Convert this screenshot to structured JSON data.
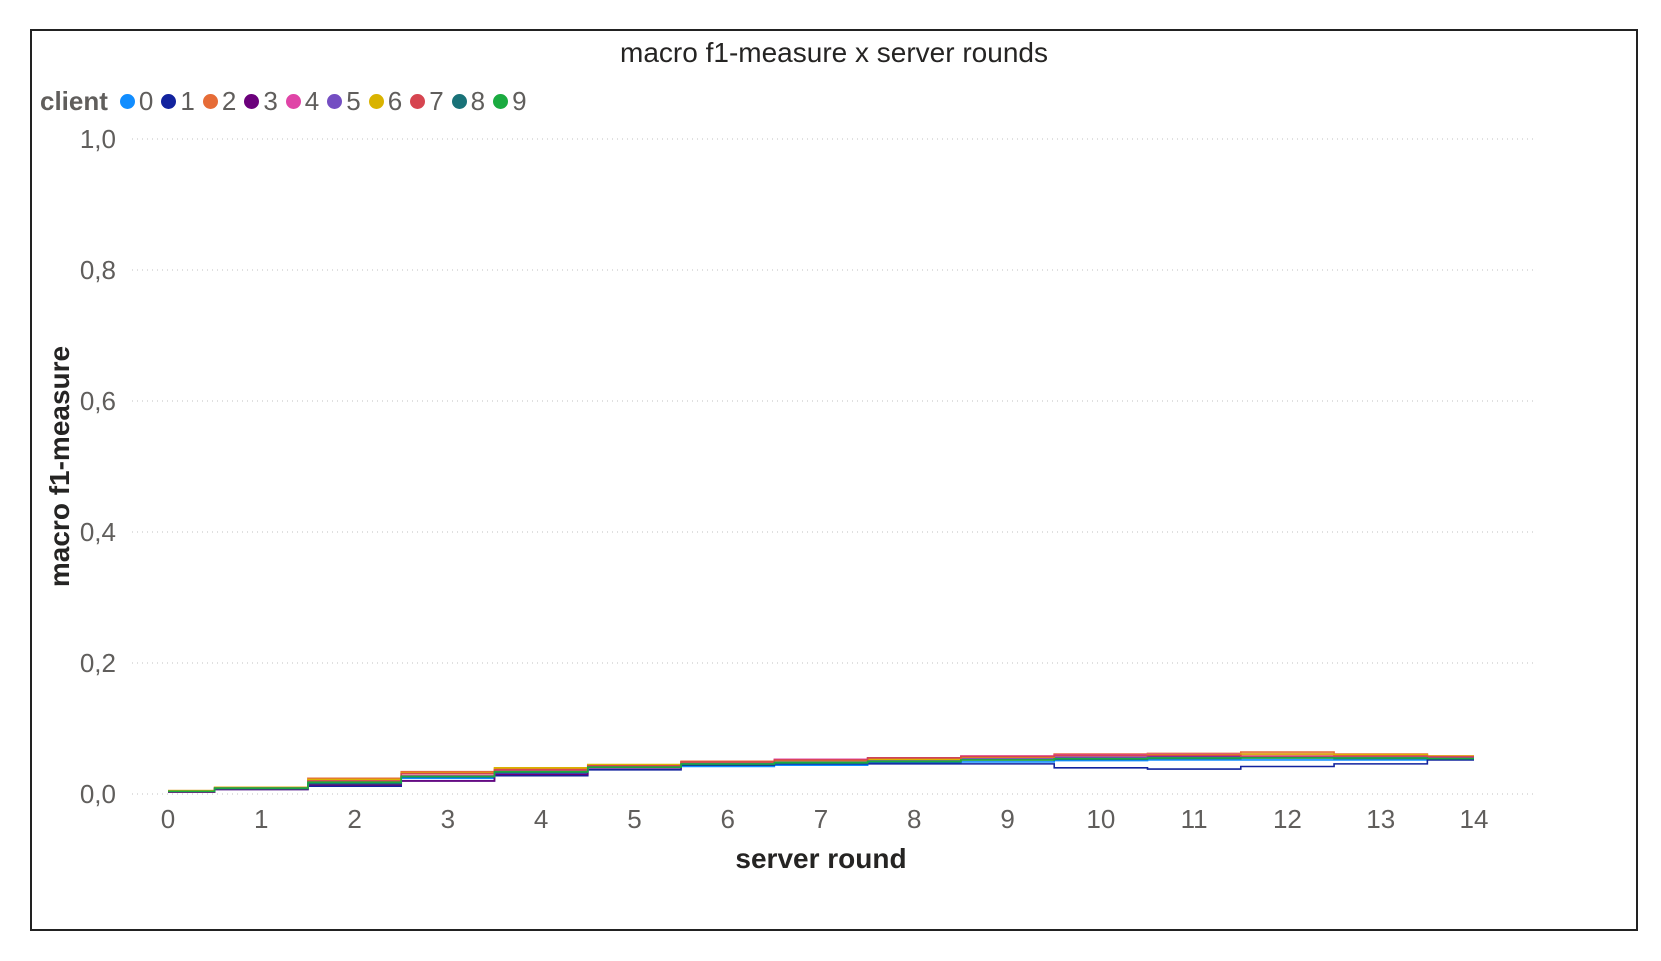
{
  "chart_data": {
    "type": "line",
    "title": "macro f1-measure x server rounds",
    "xlabel": "server round",
    "ylabel": "macro f1-measure",
    "legend_title": "client",
    "legend_position": "top-left",
    "grid": true,
    "step": true,
    "xlim": [
      0,
      14
    ],
    "ylim": [
      0,
      1
    ],
    "x_ticks": [
      "0",
      "1",
      "2",
      "3",
      "4",
      "5",
      "6",
      "7",
      "8",
      "9",
      "10",
      "11",
      "12",
      "13",
      "14"
    ],
    "y_ticks": [
      "0,0",
      "0,2",
      "0,4",
      "0,6",
      "0,8",
      "1,0"
    ],
    "x": [
      0,
      1,
      2,
      3,
      4,
      5,
      6,
      7,
      8,
      9,
      10,
      11,
      12,
      13,
      14
    ],
    "series": [
      {
        "name": "0",
        "color": "#118DFF",
        "values": [
          0.004,
          0.008,
          0.015,
          0.024,
          0.032,
          0.04,
          0.042,
          0.044,
          0.047,
          0.049,
          0.051,
          0.052,
          0.052,
          0.052,
          0.053
        ]
      },
      {
        "name": "1",
        "color": "#12239E",
        "values": [
          0.003,
          0.007,
          0.012,
          0.02,
          0.028,
          0.037,
          0.044,
          0.046,
          0.046,
          0.046,
          0.04,
          0.038,
          0.042,
          0.046,
          0.052
        ]
      },
      {
        "name": "2",
        "color": "#E66C37",
        "values": [
          0.005,
          0.01,
          0.024,
          0.034,
          0.038,
          0.044,
          0.05,
          0.052,
          0.054,
          0.058,
          0.061,
          0.062,
          0.064,
          0.061,
          0.058
        ]
      },
      {
        "name": "3",
        "color": "#6B007B",
        "values": [
          0.003,
          0.007,
          0.014,
          0.02,
          0.03,
          0.04,
          0.046,
          0.05,
          0.055,
          0.056,
          0.056,
          0.057,
          0.057,
          0.056,
          0.056
        ]
      },
      {
        "name": "4",
        "color": "#E044A7",
        "values": [
          0.004,
          0.008,
          0.018,
          0.028,
          0.035,
          0.042,
          0.048,
          0.053,
          0.054,
          0.058,
          0.06,
          0.061,
          0.061,
          0.059,
          0.057
        ]
      },
      {
        "name": "5",
        "color": "#744EC2",
        "values": [
          0.004,
          0.009,
          0.017,
          0.027,
          0.034,
          0.041,
          0.047,
          0.05,
          0.052,
          0.054,
          0.055,
          0.056,
          0.057,
          0.056,
          0.055
        ]
      },
      {
        "name": "6",
        "color": "#D9B300",
        "values": [
          0.005,
          0.01,
          0.022,
          0.032,
          0.04,
          0.045,
          0.049,
          0.051,
          0.053,
          0.056,
          0.059,
          0.06,
          0.061,
          0.06,
          0.058
        ]
      },
      {
        "name": "7",
        "color": "#D64550",
        "values": [
          0.004,
          0.009,
          0.02,
          0.031,
          0.037,
          0.043,
          0.049,
          0.052,
          0.055,
          0.057,
          0.059,
          0.059,
          0.058,
          0.058,
          0.057
        ]
      },
      {
        "name": "8",
        "color": "#197278",
        "values": [
          0.004,
          0.008,
          0.016,
          0.026,
          0.033,
          0.041,
          0.045,
          0.047,
          0.049,
          0.052,
          0.053,
          0.054,
          0.055,
          0.054,
          0.054
        ]
      },
      {
        "name": "9",
        "color": "#1AAB40",
        "values": [
          0.004,
          0.009,
          0.018,
          0.027,
          0.034,
          0.041,
          0.046,
          0.048,
          0.05,
          0.052,
          0.054,
          0.055,
          0.055,
          0.055,
          0.054
        ]
      }
    ]
  }
}
